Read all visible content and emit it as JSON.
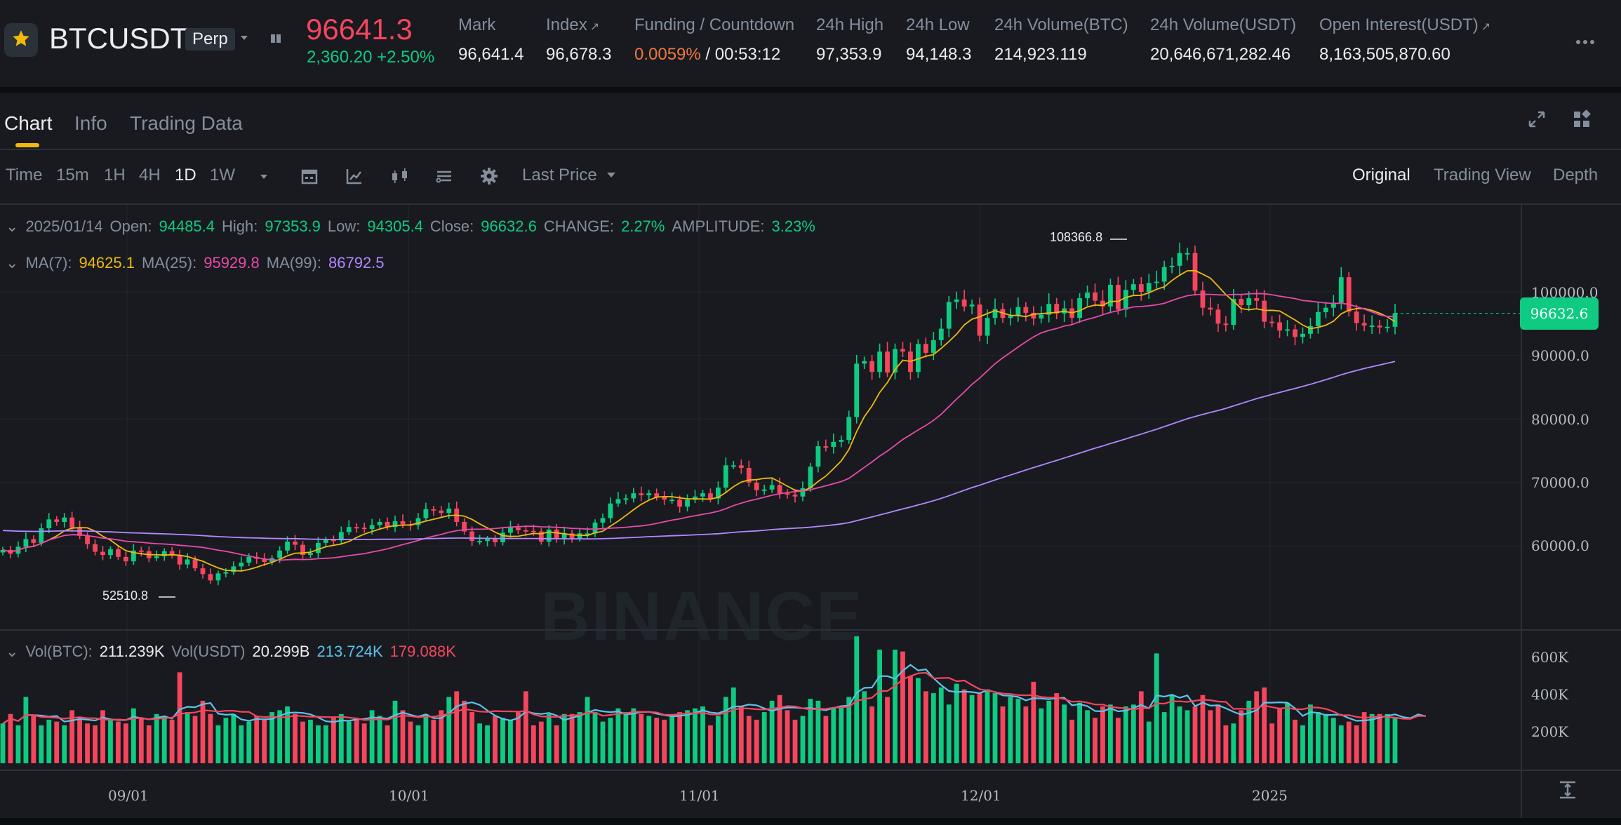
{
  "header": {
    "symbol": "BTCUSDT",
    "perp_label": "Perp",
    "last_price": "96641.3",
    "price_change": "2,360.20 +2.50%",
    "stats": [
      {
        "label": "Mark",
        "value": "96,641.4"
      },
      {
        "label": "Index",
        "value": "96,678.3"
      },
      {
        "label": "Funding / Countdown",
        "value_rate": "0.0059%",
        "value_countdown": " / 00:53:12"
      },
      {
        "label": "24h High",
        "value": "97,353.9"
      },
      {
        "label": "24h Low",
        "value": "94,148.3"
      },
      {
        "label": "24h Volume(BTC)",
        "value": "214,923.119"
      },
      {
        "label": "24h Volume(USDT)",
        "value": "20,646,671,282.46"
      },
      {
        "label": "Open Interest(USDT)",
        "value": "8,163,505,870.60"
      }
    ],
    "arrow_glyph": "↗"
  },
  "tabs": [
    "Chart",
    "Info",
    "Trading Data"
  ],
  "toolbar": {
    "intervals": [
      "Time",
      "15m",
      "1H",
      "4H",
      "1D",
      "1W"
    ],
    "active_interval": "1D",
    "price_type": "Last Price",
    "views": [
      "Original",
      "Trading View",
      "Depth"
    ],
    "active_view": "Original"
  },
  "ohlc": {
    "date": "2025/01/14",
    "open_label": "Open:",
    "open": "94485.4",
    "high_label": "High:",
    "high": "97353.9",
    "low_label": "Low:",
    "low": "94305.4",
    "close_label": "Close:",
    "close": "96632.6",
    "change_label": "CHANGE:",
    "change": "2.27%",
    "amp_label": "AMPLITUDE:",
    "amplitude": "3.23%"
  },
  "ma": {
    "ma7_label": "MA(7):",
    "ma7": "94625.1",
    "ma25_label": "MA(25):",
    "ma25": "95929.8",
    "ma99_label": "MA(99):",
    "ma99": "86792.5"
  },
  "vol": {
    "btc_label": "Vol(BTC):",
    "btc": "211.239K",
    "usdt_label": "Vol(USDT)",
    "usdt": "20.299B",
    "ma1": "213.724K",
    "ma2": "179.088K"
  },
  "watermark": "BINANCE",
  "chart_data": {
    "type": "candlestick",
    "current_price_tag": "96632.6",
    "max_marker": "108366.8",
    "min_marker": "52510.8",
    "price_axis_ticks": [
      "100000.0",
      "90000.0",
      "80000.0",
      "70000.0",
      "60000.0"
    ],
    "price_ylim": [
      50000,
      110000
    ],
    "volume_axis_ticks": [
      "600K",
      "400K",
      "200K"
    ],
    "volume_ylim": [
      0,
      680000
    ],
    "x_ticks": [
      "09/01",
      "10/01",
      "11/01",
      "12/01",
      "2025"
    ],
    "colors": {
      "up": "#0ecb81",
      "down": "#f6465d",
      "ma7": "#f0b90b",
      "ma25": "#e64ba8",
      "ma99": "#b388ff",
      "vol_ma1": "#5cc3e8",
      "vol_ma2": "#f6465d"
    },
    "closes": [
      59400,
      58800,
      59900,
      61100,
      60500,
      62800,
      64200,
      63800,
      64500,
      62900,
      61600,
      60300,
      59100,
      58600,
      59500,
      58300,
      57600,
      59300,
      59200,
      58100,
      58400,
      59200,
      58600,
      57100,
      57900,
      56500,
      55600,
      54600,
      55700,
      55900,
      56800,
      57400,
      58300,
      58000,
      57500,
      58100,
      59300,
      60700,
      60200,
      58600,
      58900,
      60500,
      61000,
      60900,
      62200,
      63000,
      62900,
      62700,
      63300,
      63800,
      63000,
      63900,
      63400,
      63300,
      64400,
      65800,
      65600,
      65200,
      65900,
      63800,
      62300,
      60800,
      60800,
      61100,
      60600,
      62100,
      62900,
      62500,
      62400,
      62300,
      60700,
      62600,
      61100,
      62000,
      61200,
      62000,
      62000,
      63700,
      64400,
      66700,
      67400,
      67500,
      68300,
      68000,
      68300,
      67700,
      67300,
      67300,
      66200,
      67300,
      67800,
      68300,
      67500,
      69200,
      72700,
      72700,
      72300,
      70000,
      68800,
      68900,
      69600,
      68300,
      68100,
      67800,
      69100,
      72500,
      75700,
      75600,
      76400,
      76700,
      80300,
      88700,
      89100,
      87400,
      90600,
      87300,
      91000,
      90600,
      87400,
      91800,
      90400,
      92400,
      94200,
      98400,
      98800,
      97700,
      98000,
      93100,
      95900,
      97300,
      95900,
      96200,
      97600,
      96700,
      95800,
      96400,
      98100,
      96600,
      97400,
      95900,
      99000,
      99900,
      98600,
      97700,
      101100,
      97200,
      100300,
      101200,
      100000,
      101400,
      101600,
      103900,
      104100,
      106100,
      106100,
      100200,
      97500,
      97200,
      95000,
      94800,
      98900,
      97900,
      99000,
      98600,
      95300,
      95200,
      93900,
      94100,
      92900,
      93400,
      94600,
      96800,
      97500,
      98300,
      102300,
      96900,
      95100,
      94700,
      94700,
      94400,
      94500,
      96632.6
    ],
    "volumes": [
      210000,
      260000,
      200000,
      350000,
      250000,
      200000,
      230000,
      220000,
      200000,
      280000,
      240000,
      210000,
      200000,
      280000,
      230000,
      220000,
      210000,
      290000,
      240000,
      200000,
      260000,
      250000,
      230000,
      480000,
      270000,
      250000,
      330000,
      260000,
      200000,
      240000,
      260000,
      200000,
      220000,
      250000,
      230000,
      270000,
      280000,
      300000,
      260000,
      220000,
      230000,
      200000,
      200000,
      240000,
      260000,
      220000,
      240000,
      210000,
      280000,
      250000,
      200000,
      330000,
      280000,
      220000,
      200000,
      260000,
      230000,
      280000,
      350000,
      380000,
      330000,
      270000,
      210000,
      200000,
      250000,
      240000,
      230000,
      270000,
      380000,
      200000,
      220000,
      260000,
      200000,
      260000,
      260000,
      270000,
      350000,
      270000,
      220000,
      240000,
      290000,
      270000,
      290000,
      260000,
      250000,
      240000,
      230000,
      260000,
      270000,
      280000,
      290000,
      300000,
      200000,
      250000,
      350000,
      400000,
      300000,
      250000,
      230000,
      270000,
      330000,
      360000,
      280000,
      230000,
      250000,
      340000,
      330000,
      250000,
      290000,
      300000,
      350000,
      670000,
      380000,
      300000,
      600000,
      350000,
      600000,
      590000,
      460000,
      450000,
      380000,
      370000,
      400000,
      310000,
      420000,
      390000,
      360000,
      370000,
      390000,
      370000,
      300000,
      350000,
      340000,
      300000,
      430000,
      290000,
      330000,
      370000,
      310000,
      230000,
      320000,
      280000,
      240000,
      300000,
      310000,
      240000,
      300000,
      310000,
      380000,
      220000,
      580000,
      270000,
      360000,
      300000,
      280000,
      300000,
      360000,
      280000,
      310000,
      200000,
      210000,
      280000,
      330000,
      380000,
      400000,
      210000,
      290000,
      320000,
      230000,
      200000,
      310000,
      270000,
      260000,
      240000,
      200000,
      220000,
      200000,
      270000,
      260000,
      260000,
      260000,
      240000,
      200000,
      230000,
      360000,
      211239
    ]
  }
}
